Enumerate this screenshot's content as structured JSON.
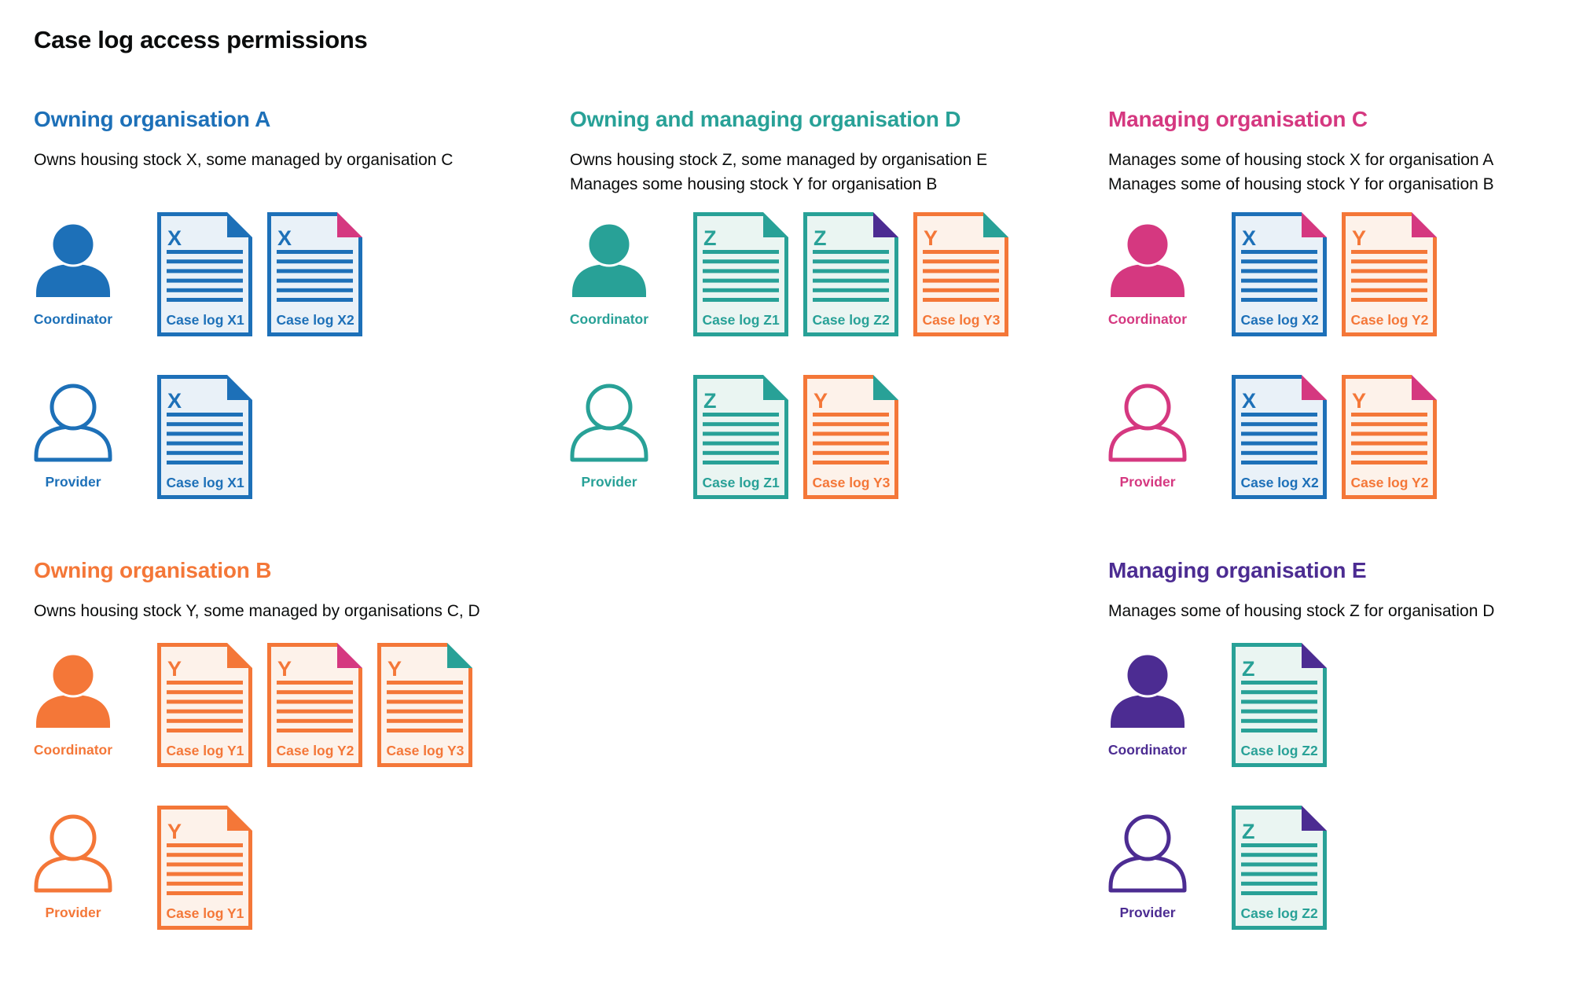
{
  "title": "Case log access permissions",
  "palette": {
    "blue": "#1d70b8",
    "teal": "#28a197",
    "pink": "#d53880",
    "orange": "#f47738",
    "purple": "#4c2c92",
    "text": "#0b0c0c"
  },
  "doc_fills": {
    "blue": "#e9f1f8",
    "teal": "#eaf5f2",
    "orange": "#fdf2ea"
  },
  "sections": [
    {
      "id": "org-a",
      "heading": "Owning organisation A",
      "color": "blue",
      "subtitle": [
        "Owns housing stock X, some managed by organisation C"
      ],
      "rows": [
        {
          "role": "Coordinator",
          "person": "filled",
          "docs": [
            {
              "letter": "X",
              "label": "Case log X1",
              "doc": "blue",
              "fold": "blue"
            },
            {
              "letter": "X",
              "label": "Case log X2",
              "doc": "blue",
              "fold": "pink"
            }
          ]
        },
        {
          "role": "Provider",
          "person": "outline",
          "docs": [
            {
              "letter": "X",
              "label": "Case log X1",
              "doc": "blue",
              "fold": "blue"
            }
          ]
        }
      ]
    },
    {
      "id": "org-d",
      "heading": "Owning and managing organisation D",
      "color": "teal",
      "subtitle": [
        "Owns housing stock Z, some managed by organisation E",
        "Manages some housing stock Y for organisation B"
      ],
      "rows": [
        {
          "role": "Coordinator",
          "person": "filled",
          "docs": [
            {
              "letter": "Z",
              "label": "Case log Z1",
              "doc": "teal",
              "fold": "teal"
            },
            {
              "letter": "Z",
              "label": "Case log Z2",
              "doc": "teal",
              "fold": "purple"
            },
            {
              "letter": "Y",
              "label": "Case log Y3",
              "doc": "orange",
              "fold": "teal"
            }
          ]
        },
        {
          "role": "Provider",
          "person": "outline",
          "docs": [
            {
              "letter": "Z",
              "label": "Case log Z1",
              "doc": "teal",
              "fold": "teal"
            },
            {
              "letter": "Y",
              "label": "Case log Y3",
              "doc": "orange",
              "fold": "teal"
            }
          ]
        }
      ]
    },
    {
      "id": "org-c",
      "heading": "Managing organisation C",
      "color": "pink",
      "subtitle": [
        "Manages some of housing stock X for organisation A",
        "Manages some of housing stock Y for organisation B"
      ],
      "rows": [
        {
          "role": "Coordinator",
          "person": "filled",
          "docs": [
            {
              "letter": "X",
              "label": "Case log X2",
              "doc": "blue",
              "fold": "pink"
            },
            {
              "letter": "Y",
              "label": "Case log Y2",
              "doc": "orange",
              "fold": "pink"
            }
          ]
        },
        {
          "role": "Provider",
          "person": "outline",
          "docs": [
            {
              "letter": "X",
              "label": "Case log X2",
              "doc": "blue",
              "fold": "pink"
            },
            {
              "letter": "Y",
              "label": "Case log Y2",
              "doc": "orange",
              "fold": "pink"
            }
          ]
        }
      ]
    },
    {
      "id": "org-b",
      "heading": "Owning organisation B",
      "color": "orange",
      "subtitle": [
        "Owns housing stock Y, some managed by organisations C, D"
      ],
      "rows": [
        {
          "role": "Coordinator",
          "person": "filled",
          "docs": [
            {
              "letter": "Y",
              "label": "Case log Y1",
              "doc": "orange",
              "fold": "orange"
            },
            {
              "letter": "Y",
              "label": "Case log Y2",
              "doc": "orange",
              "fold": "pink"
            },
            {
              "letter": "Y",
              "label": "Case log Y3",
              "doc": "orange",
              "fold": "teal"
            }
          ]
        },
        {
          "role": "Provider",
          "person": "outline",
          "docs": [
            {
              "letter": "Y",
              "label": "Case log Y1",
              "doc": "orange",
              "fold": "orange"
            }
          ]
        }
      ]
    },
    {
      "id": "org-e",
      "heading": "Managing organisation E",
      "color": "purple",
      "subtitle": [
        "Manages some of housing stock Z for organisation D"
      ],
      "rows": [
        {
          "role": "Coordinator",
          "person": "filled",
          "docs": [
            {
              "letter": "Z",
              "label": "Case log Z2",
              "doc": "teal",
              "fold": "purple"
            }
          ]
        },
        {
          "role": "Provider",
          "person": "outline",
          "docs": [
            {
              "letter": "Z",
              "label": "Case log Z2",
              "doc": "teal",
              "fold": "purple"
            }
          ]
        }
      ]
    }
  ]
}
